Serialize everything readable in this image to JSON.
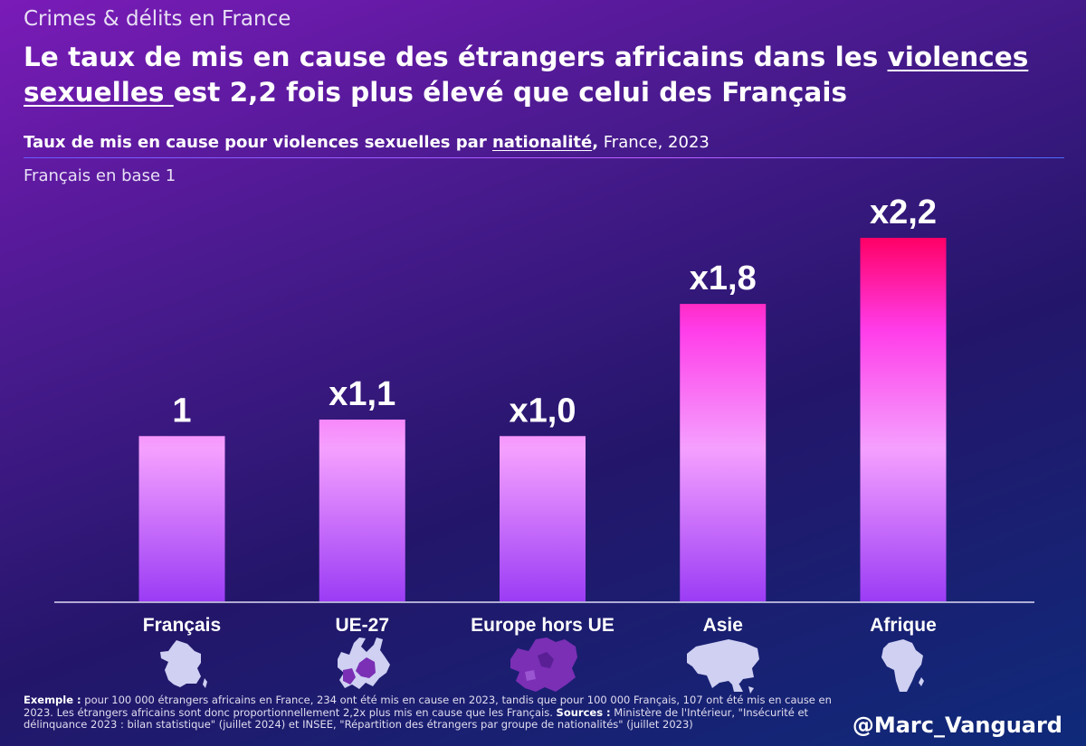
{
  "header": {
    "kicker": "Crimes & délits en France",
    "headline_part1": "Le taux de mis en cause des étrangers africains dans les ",
    "headline_underlined_1": "violences",
    "headline_underlined_2": "sexuelles ",
    "headline_part2": "est 2,2 fois plus élevé que celui des Français",
    "subtitle_bold": "Taux de mis en cause pour violences sexuelles par ",
    "subtitle_bold_underlined": "nationalité",
    "subtitle_comma": ",",
    "subtitle_rest": " France, 2023",
    "base_note": "Français en base 1"
  },
  "chart_data": {
    "type": "bar",
    "title": "Taux de mis en cause pour violences sexuelles par nationalité, France, 2023",
    "ylabel": "Français en base 1",
    "categories": [
      "Français",
      "UE-27",
      "Europe hors UE",
      "Asie",
      "Afrique"
    ],
    "values": [
      1.0,
      1.1,
      1.0,
      1.8,
      2.2
    ],
    "data_labels": [
      "1",
      "x1,1",
      "x1,0",
      "x1,8",
      "x2,2"
    ],
    "ylim": [
      0,
      2.2
    ],
    "grid": false,
    "legend": "none"
  },
  "icons": [
    "france-map-icon",
    "eu27-map-icon",
    "europe-non-eu-map-icon",
    "asia-map-icon",
    "africa-map-icon"
  ],
  "colors": {
    "bar_top_high": "#ff0066",
    "bar_mid": "#ff3ce8",
    "bar_light": "#f5a0ff",
    "bar_bottom": "#9b3cf5",
    "map_light": "#cfd0f2",
    "map_highlight": "#7a2fb5"
  },
  "footer": {
    "example_label": "Exemple :",
    "example_text": " pour 100 000 étrangers africains en France, 234 ont été mis en cause en 2023, tandis que pour 100 000 Français, 107 ont été mis en cause en 2023. Les étrangers africains sont donc proportionnellement 2,2x plus mis en cause que les Français. ",
    "sources_label": "Sources :",
    "sources_text": " Ministère de l'Intérieur, \"Insécurité et délinquance 2023 : bilan statistique\" (juillet 2024) et INSEE, \"Répartition des étrangers par groupe de nationalités\" (juillet 2023)",
    "handle": "@Marc_Vanguard"
  }
}
